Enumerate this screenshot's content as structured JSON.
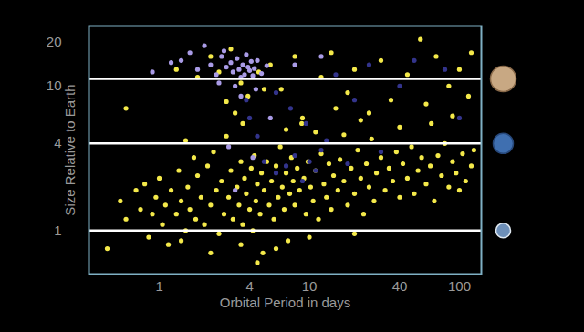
{
  "chart_data": {
    "type": "scatter",
    "x_label": "Orbital Period in days",
    "y_label": "Size Relative to Earth",
    "log": true,
    "grid": false,
    "marker": "circle",
    "xlim": [
      0.34,
      140
    ],
    "ylim": [
      0.5,
      26
    ],
    "xticks": [
      1,
      4,
      10,
      40,
      100
    ],
    "yticks": [
      1,
      4,
      10,
      20
    ],
    "reference_lines": [
      11.2,
      4,
      1
    ],
    "series": [
      {
        "color": "#f4e94a",
        "points": [
          [
            0.45,
            0.75
          ],
          [
            0.55,
            1.6
          ],
          [
            0.6,
            1.2
          ],
          [
            0.7,
            1.9
          ],
          [
            0.75,
            1.4
          ],
          [
            0.8,
            2.1
          ],
          [
            0.85,
            0.9
          ],
          [
            0.9,
            1.3
          ],
          [
            0.95,
            1.7
          ],
          [
            1.0,
            2.3
          ],
          [
            1.05,
            1.1
          ],
          [
            1.1,
            1.5
          ],
          [
            1.15,
            0.8
          ],
          [
            1.2,
            1.9
          ],
          [
            1.3,
            1.3
          ],
          [
            1.35,
            2.6
          ],
          [
            1.4,
            1.6
          ],
          [
            1.5,
            1.0
          ],
          [
            1.55,
            2.0
          ],
          [
            1.6,
            1.4
          ],
          [
            1.7,
            3.2
          ],
          [
            1.75,
            1.2
          ],
          [
            1.8,
            2.4
          ],
          [
            1.9,
            1.7
          ],
          [
            2.0,
            1.1
          ],
          [
            2.1,
            2.8
          ],
          [
            2.2,
            1.5
          ],
          [
            2.3,
            3.5
          ],
          [
            2.4,
            1.9
          ],
          [
            2.5,
            0.95
          ],
          [
            2.6,
            2.2
          ],
          [
            2.7,
            1.3
          ],
          [
            2.8,
            4.5
          ],
          [
            2.9,
            1.7
          ],
          [
            3.0,
            2.6
          ],
          [
            3.1,
            1.2
          ],
          [
            3.2,
            6.5
          ],
          [
            3.3,
            2.0
          ],
          [
            3.4,
            1.5
          ],
          [
            3.5,
            3.0
          ],
          [
            3.6,
            1.1
          ],
          [
            3.7,
            2.3
          ],
          [
            3.8,
            1.8
          ],
          [
            3.9,
            8.5
          ],
          [
            4.0,
            1.4
          ],
          [
            4.1,
            2.7
          ],
          [
            4.2,
            1.0
          ],
          [
            4.3,
            3.3
          ],
          [
            4.4,
            1.6
          ],
          [
            4.5,
            2.1
          ],
          [
            4.6,
            12.5
          ],
          [
            4.7,
            1.3
          ],
          [
            4.8,
            2.5
          ],
          [
            4.9,
            0.7
          ],
          [
            5.0,
            1.9
          ],
          [
            5.2,
            3.0
          ],
          [
            5.4,
            1.5
          ],
          [
            5.6,
            2.2
          ],
          [
            5.8,
            1.2
          ],
          [
            6.0,
            2.8
          ],
          [
            6.2,
            1.7
          ],
          [
            6.4,
            3.8
          ],
          [
            6.6,
            2.0
          ],
          [
            6.8,
            1.4
          ],
          [
            7.0,
            2.5
          ],
          [
            7.2,
            0.85
          ],
          [
            7.4,
            1.8
          ],
          [
            7.6,
            3.2
          ],
          [
            7.8,
            2.2
          ],
          [
            8.0,
            1.5
          ],
          [
            8.3,
            2.7
          ],
          [
            8.6,
            1.9
          ],
          [
            8.9,
            5.5
          ],
          [
            9.2,
            2.3
          ],
          [
            9.5,
            1.3
          ],
          [
            9.8,
            3.0
          ],
          [
            10.2,
            2.0
          ],
          [
            10.6,
            1.6
          ],
          [
            11,
            2.6
          ],
          [
            11.5,
            1.2
          ],
          [
            12,
            3.4
          ],
          [
            12.5,
            2.1
          ],
          [
            13,
            1.7
          ],
          [
            13.5,
            2.9
          ],
          [
            14,
            1.4
          ],
          [
            14.5,
            2.4
          ],
          [
            15,
            7.0
          ],
          [
            15.5,
            1.9
          ],
          [
            16,
            3.1
          ],
          [
            17,
            2.2
          ],
          [
            18,
            1.5
          ],
          [
            19,
            2.7
          ],
          [
            20,
            1.8
          ],
          [
            21,
            3.6
          ],
          [
            22,
            2.3
          ],
          [
            23,
            1.3
          ],
          [
            24,
            2.9
          ],
          [
            25,
            2.0
          ],
          [
            26,
            4.3
          ],
          [
            27,
            1.6
          ],
          [
            28,
            2.5
          ],
          [
            30,
            3.2
          ],
          [
            32,
            1.9
          ],
          [
            34,
            2.7
          ],
          [
            36,
            2.2
          ],
          [
            38,
            3.5
          ],
          [
            40,
            1.7
          ],
          [
            42,
            2.9
          ],
          [
            45,
            2.3
          ],
          [
            48,
            3.8
          ],
          [
            50,
            1.8
          ],
          [
            53,
            2.6
          ],
          [
            56,
            3.2
          ],
          [
            60,
            2.1
          ],
          [
            64,
            2.8
          ],
          [
            68,
            1.6
          ],
          [
            72,
            3.3
          ],
          [
            76,
            2.4
          ],
          [
            80,
            4.0
          ],
          [
            85,
            2.0
          ],
          [
            90,
            3.0
          ],
          [
            95,
            2.5
          ],
          [
            100,
            1.9
          ],
          [
            105,
            3.4
          ],
          [
            110,
            2.2
          ],
          [
            120,
            2.8
          ],
          [
            125,
            3.6
          ],
          [
            1.3,
            13
          ],
          [
            1.8,
            11.5
          ],
          [
            2.2,
            16
          ],
          [
            2.5,
            12.5
          ],
          [
            3.0,
            18
          ],
          [
            3.5,
            10.5
          ],
          [
            5.5,
            14
          ],
          [
            6.5,
            9.5
          ],
          [
            8,
            16
          ],
          [
            9,
            6.0
          ],
          [
            12,
            11.5
          ],
          [
            14,
            17
          ],
          [
            18,
            9.0
          ],
          [
            20,
            13
          ],
          [
            25,
            6.5
          ],
          [
            30,
            15
          ],
          [
            35,
            8
          ],
          [
            45,
            12
          ],
          [
            55,
            21
          ],
          [
            60,
            7.5
          ],
          [
            70,
            16
          ],
          [
            85,
            10
          ],
          [
            100,
            13
          ],
          [
            115,
            8.5
          ],
          [
            120,
            17
          ],
          [
            40,
            5.2
          ],
          [
            22,
            5.8
          ],
          [
            11,
            4.8
          ],
          [
            7,
            5.0
          ],
          [
            3.6,
            5.5
          ],
          [
            1.5,
            4.2
          ],
          [
            0.6,
            7.0
          ],
          [
            2.8,
            7.8
          ],
          [
            5,
            9.5
          ],
          [
            17,
            4.6
          ],
          [
            65,
            5.5
          ],
          [
            90,
            6.2
          ],
          [
            4.5,
            0.6
          ],
          [
            6,
            0.75
          ],
          [
            3.5,
            0.8
          ],
          [
            10,
            0.9
          ],
          [
            20,
            0.95
          ],
          [
            2.2,
            0.7
          ],
          [
            1.4,
            0.85
          ]
        ]
      },
      {
        "color": "#a99be6",
        "points": [
          [
            1.4,
            15
          ],
          [
            1.6,
            17
          ],
          [
            1.8,
            13
          ],
          [
            2,
            19
          ],
          [
            2.2,
            14
          ],
          [
            2.4,
            12
          ],
          [
            2.6,
            16
          ],
          [
            2.8,
            13.5
          ],
          [
            3,
            14.5
          ],
          [
            3.1,
            12.5
          ],
          [
            3.3,
            15.5
          ],
          [
            3.4,
            13
          ],
          [
            3.5,
            11.5
          ],
          [
            3.6,
            14
          ],
          [
            3.7,
            12
          ],
          [
            3.8,
            16.5
          ],
          [
            3.9,
            13.5
          ],
          [
            4.0,
            12.8
          ],
          [
            4.1,
            14.8
          ],
          [
            4.2,
            11.8
          ],
          [
            4.3,
            13.2
          ],
          [
            4.5,
            15
          ],
          [
            4.8,
            12.2
          ],
          [
            5.2,
            13.8
          ],
          [
            2.5,
            10.5
          ],
          [
            1.2,
            14.5
          ],
          [
            0.9,
            12.5
          ],
          [
            3.2,
            10
          ],
          [
            4.4,
            9.5
          ],
          [
            3.5,
            8.5
          ],
          [
            2.9,
            3.8
          ],
          [
            4.2,
            3.2
          ],
          [
            3.2,
            1.9
          ],
          [
            5.5,
            6.0
          ],
          [
            8,
            14
          ],
          [
            12,
            16
          ],
          [
            2.7,
            17.5
          ]
        ]
      },
      {
        "color": "#33348c",
        "points": [
          [
            5,
            3
          ],
          [
            6,
            2.5
          ],
          [
            7,
            2.8
          ],
          [
            8,
            3.3
          ],
          [
            9,
            2.2
          ],
          [
            10,
            3.0
          ],
          [
            11,
            2.6
          ],
          [
            12,
            3.6
          ],
          [
            7.5,
            7
          ],
          [
            4.5,
            4.5
          ],
          [
            4,
            6
          ],
          [
            6,
            9
          ],
          [
            15,
            12
          ],
          [
            20,
            8
          ],
          [
            25,
            14
          ],
          [
            30,
            3.5
          ],
          [
            40,
            10
          ],
          [
            50,
            15
          ],
          [
            80,
            13
          ],
          [
            100,
            6
          ],
          [
            3.8,
            8
          ],
          [
            9.5,
            5.5
          ],
          [
            13,
            4.2
          ],
          [
            18,
            2.9
          ]
        ]
      }
    ]
  }
}
